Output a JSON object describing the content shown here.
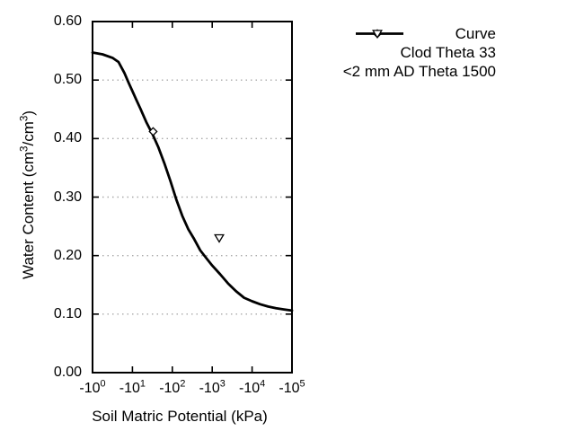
{
  "colors": {
    "foreground": "#000000",
    "grid": "#aaaaaa",
    "background": "#ffffff"
  },
  "chart_data": {
    "type": "line",
    "title": "",
    "xlabel": "Soil Matric Potential (kPa)",
    "ylabel": "Water Content (cm3/cm3)",
    "ylabel_parts": [
      "Water Content (cm",
      {
        "sup": "3"
      },
      "/cm",
      {
        "sup": "3"
      },
      ")"
    ],
    "x_axis": {
      "scale": "log10-of-negative-kPa",
      "range_log10": [
        0,
        5
      ],
      "ticks": [
        {
          "text": "-10",
          "sup": "0"
        },
        {
          "text": "-10",
          "sup": "1"
        },
        {
          "text": "-10",
          "sup": "2"
        },
        {
          "text": "-10",
          "sup": "3"
        },
        {
          "text": "-10",
          "sup": "4"
        },
        {
          "text": "-10",
          "sup": "5"
        }
      ]
    },
    "y_axis": {
      "range": [
        0.0,
        0.6
      ],
      "tick_step": 0.1,
      "ticks": [
        "0.00",
        "0.10",
        "0.20",
        "0.30",
        "0.40",
        "0.50",
        "0.60"
      ],
      "grid_values": [
        0.1,
        0.2,
        0.3,
        0.4,
        0.5
      ],
      "grid_style": "dotted horizontal"
    },
    "legend_position": "top-right outside plot",
    "series": [
      {
        "name": "Curve",
        "type": "line",
        "marker": "line",
        "points_log10_theta": [
          [
            0.0,
            0.547
          ],
          [
            0.25,
            0.544
          ],
          [
            0.5,
            0.538
          ],
          [
            0.65,
            0.531
          ],
          [
            0.8,
            0.512
          ],
          [
            0.9,
            0.496
          ],
          [
            1.0,
            0.481
          ],
          [
            1.1,
            0.466
          ],
          [
            1.2,
            0.451
          ],
          [
            1.35,
            0.428
          ],
          [
            1.5,
            0.408
          ],
          [
            1.65,
            0.385
          ],
          [
            1.8,
            0.358
          ],
          [
            1.95,
            0.328
          ],
          [
            2.1,
            0.296
          ],
          [
            2.25,
            0.268
          ],
          [
            2.4,
            0.245
          ],
          [
            2.55,
            0.228
          ],
          [
            2.7,
            0.209
          ],
          [
            2.85,
            0.196
          ],
          [
            3.0,
            0.183
          ],
          [
            3.2,
            0.168
          ],
          [
            3.4,
            0.152
          ],
          [
            3.6,
            0.139
          ],
          [
            3.8,
            0.128
          ],
          [
            4.0,
            0.122
          ],
          [
            4.2,
            0.117
          ],
          [
            4.4,
            0.113
          ],
          [
            4.6,
            0.11
          ],
          [
            4.8,
            0.108
          ],
          [
            5.0,
            0.106
          ]
        ]
      },
      {
        "name": "Clod Theta 33",
        "type": "scatter",
        "marker": "diamond-open",
        "points_kPa": [
          -33
        ],
        "points_log10_theta": [
          [
            1.519,
            0.412
          ]
        ]
      },
      {
        "name": "<2 mm AD Theta 1500",
        "type": "scatter",
        "marker": "triangle-down-open",
        "points_kPa": [
          -1500
        ],
        "points_log10_theta": [
          [
            3.176,
            0.23
          ]
        ]
      }
    ]
  }
}
